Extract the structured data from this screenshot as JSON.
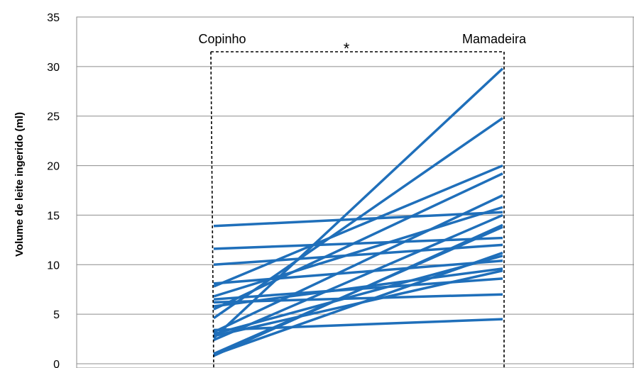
{
  "chart_data": {
    "type": "line",
    "ylabel": "Volume de leite ingerido (ml)",
    "ylim": [
      0,
      35
    ],
    "yticks": [
      0,
      5,
      10,
      15,
      20,
      25,
      30,
      35
    ],
    "categories": [
      "Copinho",
      "Mamadeira"
    ],
    "significance_marker": "*",
    "grid": true,
    "line_color": "#1f6fba",
    "pairs": [
      [
        2.6,
        29.8
      ],
      [
        4.6,
        24.8
      ],
      [
        7.8,
        20.0
      ],
      [
        5.5,
        19.2
      ],
      [
        3.2,
        17.0
      ],
      [
        6.8,
        15.8
      ],
      [
        13.9,
        15.3
      ],
      [
        2.4,
        15.0
      ],
      [
        0.8,
        14.0
      ],
      [
        1.0,
        13.8
      ],
      [
        11.6,
        12.7
      ],
      [
        10.0,
        12.0
      ],
      [
        0.9,
        11.2
      ],
      [
        3.0,
        10.9
      ],
      [
        8.1,
        10.4
      ],
      [
        5.8,
        9.6
      ],
      [
        2.8,
        9.4
      ],
      [
        6.2,
        7.0
      ],
      [
        6.5,
        8.6
      ],
      [
        3.4,
        4.5
      ]
    ]
  }
}
